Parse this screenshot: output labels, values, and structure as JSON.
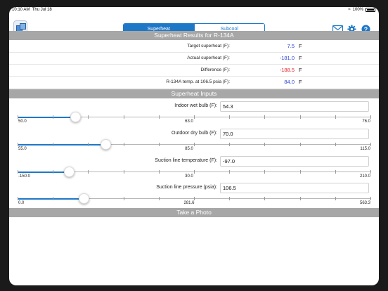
{
  "status": {
    "time": "10:10 AM",
    "date": "Thu Jul 18",
    "battery": "100%"
  },
  "nav": {
    "tabs": [
      {
        "label": "Superheat",
        "active": true
      },
      {
        "label": "Subcool",
        "active": false
      }
    ],
    "icons": [
      "app-logo-icon",
      "mail-icon",
      "gear-icon",
      "help-icon"
    ],
    "accent": "#1e78c8"
  },
  "results": {
    "header": "Superheat Results for R-134A",
    "rows": [
      {
        "label": "Target superheat (F):",
        "value": "7.5",
        "unit": "F",
        "color": "#2a3fd0"
      },
      {
        "label": "Actual superheat (F):",
        "value": "-181.0",
        "unit": "F",
        "color": "#2a3fd0"
      },
      {
        "label": "Difference (F):",
        "value": "-188.5",
        "unit": "F",
        "color": "#e0262a"
      },
      {
        "label": "R-134A temp. at 106.5 psia (F):",
        "value": "84.0",
        "unit": "F",
        "color": "#2a3fd0"
      }
    ]
  },
  "inputs": {
    "header": "Superheat Inputs",
    "fields": [
      {
        "label": "Indoor wet bulb (F):",
        "value": "54.3",
        "min": "50.0",
        "mid": "63.0",
        "max": "76.0",
        "fraction": 0.165
      },
      {
        "label": "Outdoor dry bulb (F):",
        "value": "70.0",
        "min": "55.0",
        "mid": "85.0",
        "max": "115.0",
        "fraction": 0.25
      },
      {
        "label": "Suction line temperature (F):",
        "value": "-97.0",
        "min": "-150.0",
        "mid": "30.0",
        "max": "210.0",
        "fraction": 0.147
      },
      {
        "label": "Suction line pressure (psia):",
        "value": "106.5",
        "min": "0.0",
        "mid": "281.6",
        "max": "563.3",
        "fraction": 0.189
      }
    ]
  },
  "photo": {
    "header": "Take a Photo"
  }
}
